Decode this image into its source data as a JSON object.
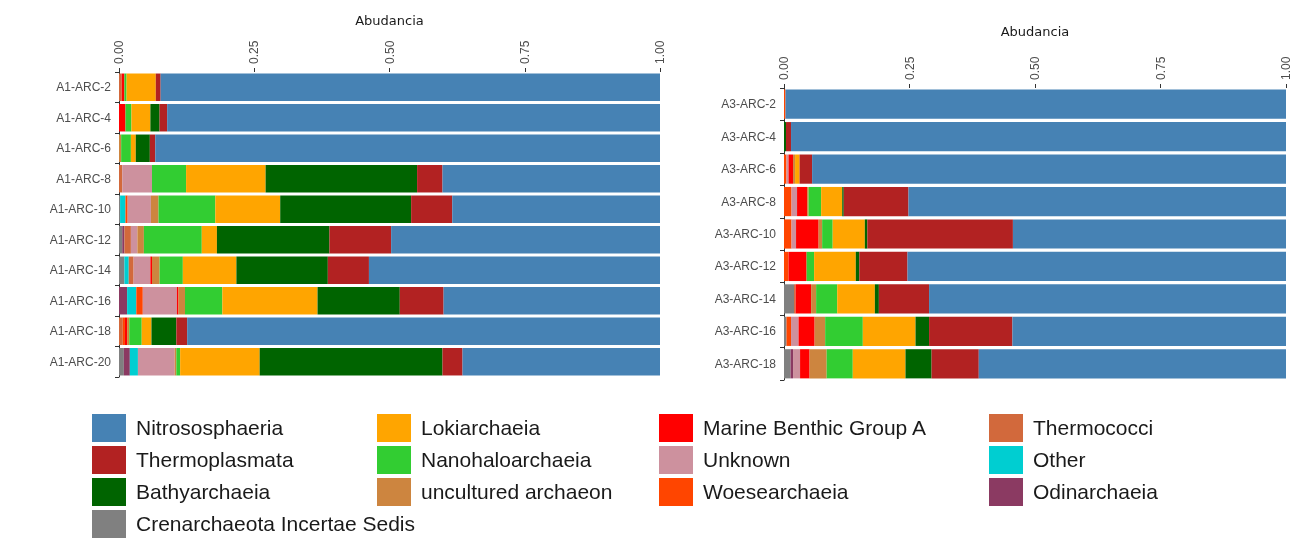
{
  "chart_data": [
    {
      "type": "bar",
      "orientation": "horizontal",
      "stacked": true,
      "xlabel": "Abudancia",
      "legend": "bottom",
      "grid": false,
      "categories": [
        "A1-ARC-2",
        "A1-ARC-4",
        "A1-ARC-6",
        "A1-ARC-8",
        "A1-ARC-10",
        "A1-ARC-12",
        "A1-ARC-14",
        "A1-ARC-16",
        "A1-ARC-18",
        "A1-ARC-20"
      ],
      "xlim": [
        0,
        1
      ],
      "xticks": [
        {
          "value": 0,
          "label": "0.00"
        },
        {
          "value": 0.25,
          "label": "0.25"
        },
        {
          "value": 0.5,
          "label": "0.50"
        },
        {
          "value": 0.75,
          "label": "0.75"
        },
        {
          "value": 1,
          "label": "1.00"
        }
      ],
      "series": [
        {
          "name": "Crenarchaeota Incertae Sedis",
          "color": "#808080",
          "values": [
            0,
            0,
            0,
            0,
            0.002,
            0.006,
            0.01,
            0,
            0,
            0.009
          ]
        },
        {
          "name": "Odinarchaeia",
          "color": "#8b3a62",
          "values": [
            0,
            0,
            0,
            0,
            0,
            0.004,
            0,
            0.015,
            0,
            0.011
          ]
        },
        {
          "name": "Other",
          "color": "#00ced1",
          "values": [
            0,
            0,
            0,
            0,
            0.01,
            0,
            0.008,
            0.017,
            0,
            0.015
          ]
        },
        {
          "name": "Thermococci",
          "color": "#d2693c",
          "values": [
            0.005,
            0,
            0,
            0.006,
            0,
            0.012,
            0.009,
            0,
            0.007,
            0
          ]
        },
        {
          "name": "Woesearchaeia",
          "color": "#ff4500",
          "values": [
            0,
            0,
            0,
            0,
            0.004,
            0,
            0,
            0.012,
            0.004,
            0
          ]
        },
        {
          "name": "Unknown",
          "color": "#cd919e",
          "values": [
            0,
            0,
            0,
            0.055,
            0.043,
            0.012,
            0.031,
            0.063,
            0,
            0.068
          ]
        },
        {
          "name": "Marine Benthic Group A",
          "color": "#ff0000",
          "values": [
            0.005,
            0.012,
            0,
            0,
            0,
            0,
            0.003,
            0.003,
            0.004,
            0
          ]
        },
        {
          "name": "uncultured archaeon",
          "color": "#cd853f",
          "values": [
            0,
            0,
            0.004,
            0,
            0.014,
            0.012,
            0.014,
            0.012,
            0.004,
            0.003
          ]
        },
        {
          "name": "Nanohaloarchaeia",
          "color": "#32cd32",
          "values": [
            0.004,
            0.011,
            0.018,
            0.063,
            0.105,
            0.107,
            0.043,
            0.069,
            0.023,
            0.007
          ]
        },
        {
          "name": "Lokiarchaeia",
          "color": "#ffa500",
          "values": [
            0.054,
            0.035,
            0.009,
            0.147,
            0.12,
            0.028,
            0.099,
            0.176,
            0.018,
            0.147
          ]
        },
        {
          "name": "Bathyarchaeia",
          "color": "#006400",
          "values": [
            0,
            0.017,
            0.026,
            0.28,
            0.242,
            0.208,
            0.169,
            0.152,
            0.046,
            0.338
          ]
        },
        {
          "name": "Thermoplasmata",
          "color": "#b22222",
          "values": [
            0.009,
            0.014,
            0.01,
            0.047,
            0.076,
            0.114,
            0.076,
            0.081,
            0.02,
            0.037
          ]
        },
        {
          "name": "Nitrososphaeria",
          "color": "#4682b4",
          "values": [
            0.923,
            0.911,
            0.933,
            0.402,
            0.384,
            0.497,
            0.538,
            0.4,
            0.874,
            0.365
          ]
        }
      ]
    },
    {
      "type": "bar",
      "orientation": "horizontal",
      "stacked": true,
      "xlabel": "Abudancia",
      "legend": "bottom",
      "grid": false,
      "categories": [
        "A3-ARC-2",
        "A3-ARC-4",
        "A3-ARC-6",
        "A3-ARC-8",
        "A3-ARC-10",
        "A3-ARC-12",
        "A3-ARC-14",
        "A3-ARC-16",
        "A3-ARC-18"
      ],
      "xlim": [
        0,
        1
      ],
      "xticks": [
        {
          "value": 0,
          "label": "0.00"
        },
        {
          "value": 0.25,
          "label": "0.25"
        },
        {
          "value": 0.5,
          "label": "0.50"
        },
        {
          "value": 0.75,
          "label": "0.75"
        },
        {
          "value": 1,
          "label": "1.00"
        }
      ],
      "series": [
        {
          "name": "Crenarchaeota Incertae Sedis",
          "color": "#808080",
          "values": [
            0,
            0,
            0,
            0,
            0,
            0,
            0.02,
            0.005,
            0.013
          ]
        },
        {
          "name": "Odinarchaeia",
          "color": "#8b3a62",
          "values": [
            0,
            0,
            0,
            0,
            0,
            0,
            0,
            0,
            0.005
          ]
        },
        {
          "name": "Other",
          "color": "#00ced1",
          "values": [
            0,
            0,
            0,
            0,
            0,
            0,
            0,
            0,
            0
          ]
        },
        {
          "name": "Thermococci",
          "color": "#d2693c",
          "values": [
            0,
            0,
            0,
            0,
            0,
            0,
            0.003,
            0,
            0
          ]
        },
        {
          "name": "Woesearchaeia",
          "color": "#ff4500",
          "values": [
            0.003,
            0,
            0.005,
            0.015,
            0.015,
            0.009,
            0,
            0.009,
            0
          ]
        },
        {
          "name": "Unknown",
          "color": "#cd919e",
          "values": [
            0,
            0,
            0.004,
            0.011,
            0.009,
            0,
            0,
            0.015,
            0.014
          ]
        },
        {
          "name": "Marine Benthic Group A",
          "color": "#ff0000",
          "values": [
            0,
            0,
            0.009,
            0.02,
            0.045,
            0.036,
            0.031,
            0.032,
            0.019
          ]
        },
        {
          "name": "uncultured archaeon",
          "color": "#cd853f",
          "values": [
            0,
            0,
            0.004,
            0.003,
            0.007,
            0,
            0.01,
            0.021,
            0.034
          ]
        },
        {
          "name": "Nanohaloarchaeia",
          "color": "#32cd32",
          "values": [
            0,
            0,
            0,
            0.025,
            0.021,
            0.015,
            0.042,
            0.075,
            0.052
          ]
        },
        {
          "name": "Lokiarchaeia",
          "color": "#ffa500",
          "values": [
            0,
            0,
            0.009,
            0.042,
            0.064,
            0.083,
            0.075,
            0.105,
            0.105
          ]
        },
        {
          "name": "Bathyarchaeia",
          "color": "#006400",
          "values": [
            0,
            0.004,
            0,
            0.003,
            0.005,
            0.007,
            0.008,
            0.027,
            0.052
          ]
        },
        {
          "name": "Thermoplasmata",
          "color": "#b22222",
          "values": [
            0,
            0.01,
            0.025,
            0.129,
            0.29,
            0.096,
            0.1,
            0.166,
            0.094
          ]
        },
        {
          "name": "Nitrososphaeria",
          "color": "#4682b4",
          "values": [
            0.997,
            0.986,
            0.944,
            0.752,
            0.544,
            0.754,
            0.711,
            0.545,
            0.612
          ]
        }
      ]
    }
  ]
}
